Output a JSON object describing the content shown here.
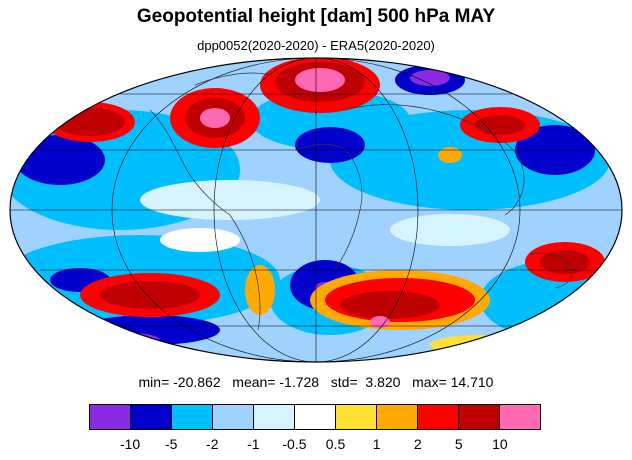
{
  "title": "Geopotential height [dam] 500 hPa MAY",
  "subtitle": "dpp0052(2020-2020) - ERA5(2020-2020)",
  "stats": {
    "min_label": "min=",
    "min": "-20.862",
    "mean_label": "mean=",
    "mean": "-1.728",
    "std_label": "std=",
    "std": "3.820",
    "max_label": "max=",
    "max": "14.710"
  },
  "colorbar": {
    "colors": [
      "#8a2be2",
      "#0000cd",
      "#00bfff",
      "#a0d2ff",
      "#d6f4ff",
      "#ffffff",
      "#ffe033",
      "#ffaa00",
      "#ff0000",
      "#c00000",
      "#ff69b4"
    ],
    "tick_labels": [
      "-10",
      "-5",
      "-2",
      "-1",
      "-0.5",
      "0.5",
      "1",
      "2",
      "5",
      "10"
    ]
  }
}
